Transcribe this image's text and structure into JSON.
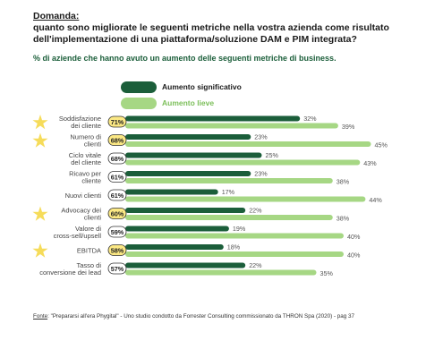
{
  "header": {
    "question_label": "Domanda:",
    "question_text": "quanto sono migliorate le seguenti metriche nella vostra azienda come risultato dell'implementazione di una piattaforma/soluzione DAM e PIM integrata?",
    "subtitle": "% di aziende che hanno avuto un aumento delle seguenti metriche di business."
  },
  "colors": {
    "dark": "#1b5e3a",
    "light": "#a6d784",
    "highlight": "#fbe884",
    "star": "#f6dc5a",
    "subtitle": "#1b5e3a"
  },
  "chart_data": {
    "type": "bar",
    "orientation": "horizontal",
    "categories": [
      "Soddisfazione dei cliente",
      "Numero di clienti",
      "Ciclo vitale del cliente",
      "Ricavo per cliente",
      "Nuovi clienti",
      "Advocacy dei clienti",
      "Valore di cross-sell/upsell",
      "EBITDA",
      "Tasso di conversione dei lead"
    ],
    "totals": [
      "71%",
      "68%",
      "68%",
      "61%",
      "61%",
      "60%",
      "59%",
      "58%",
      "57%"
    ],
    "starred": [
      true,
      true,
      false,
      false,
      false,
      true,
      false,
      true,
      false
    ],
    "series": [
      {
        "name": "Aumento significativo",
        "values": [
          32,
          23,
          25,
          23,
          17,
          22,
          19,
          18,
          22
        ]
      },
      {
        "name": "Aumento lieve",
        "values": [
          39,
          45,
          43,
          38,
          44,
          38,
          40,
          40,
          35
        ]
      }
    ],
    "xlim": [
      0,
      45
    ]
  },
  "footer": {
    "source_label": "Fonte",
    "source_text": ": \"Prepararsi all'era Phygital\" - Uno studio condotto da Forrester Consulting commissionato da THRON Spa (2020) - pag 37"
  }
}
